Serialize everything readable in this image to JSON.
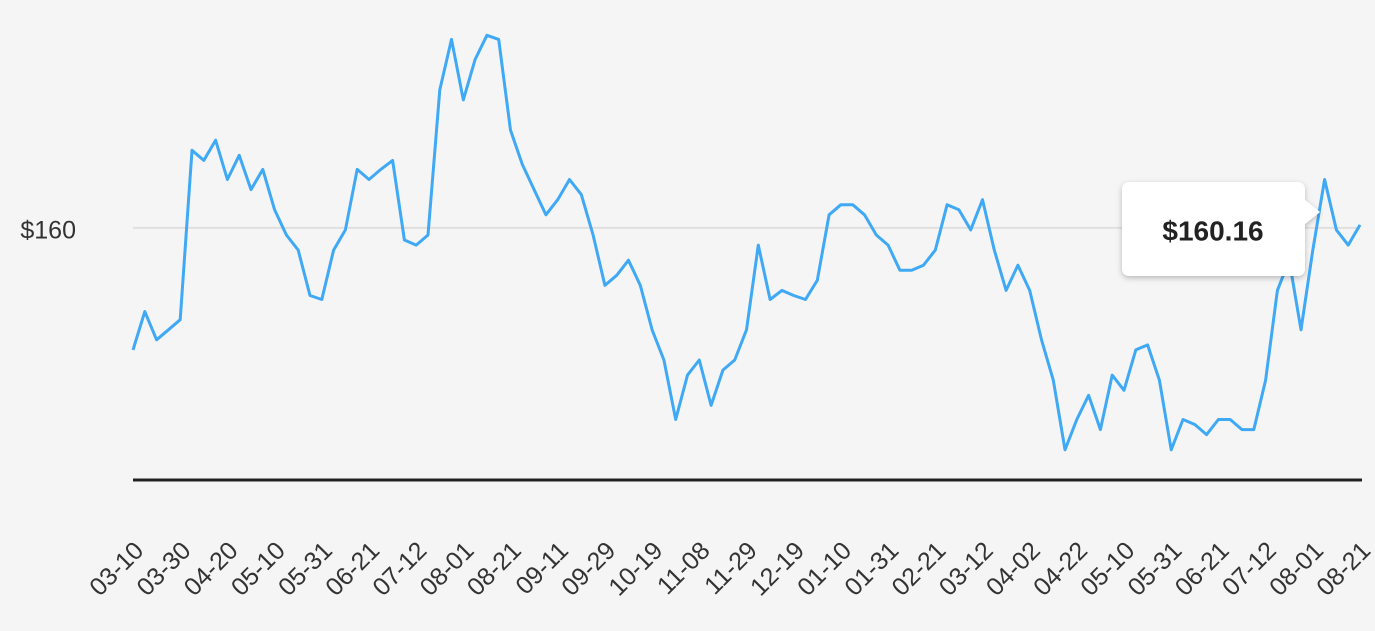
{
  "chart_data": {
    "type": "line",
    "categories": [
      "03-10",
      null,
      null,
      null,
      "03-30",
      null,
      null,
      null,
      "04-20",
      null,
      null,
      null,
      "05-10",
      null,
      null,
      null,
      "05-31",
      null,
      null,
      null,
      "06-21",
      null,
      null,
      null,
      "07-12",
      null,
      null,
      null,
      "08-01",
      null,
      null,
      null,
      "08-21",
      null,
      null,
      null,
      "09-11",
      null,
      null,
      null,
      "09-29",
      null,
      null,
      null,
      "10-19",
      null,
      null,
      null,
      "11-08",
      null,
      null,
      null,
      "11-29",
      null,
      null,
      null,
      "12-19",
      null,
      null,
      null,
      "01-10",
      null,
      null,
      null,
      "01-31",
      null,
      null,
      null,
      "02-21",
      null,
      null,
      null,
      "03-12",
      null,
      null,
      null,
      "04-02",
      null,
      null,
      null,
      "04-22",
      null,
      null,
      null,
      "05-10",
      null,
      null,
      null,
      "05-31",
      null,
      null,
      null,
      "06-21",
      null,
      null,
      null,
      "07-12",
      null,
      null,
      null,
      "08-01",
      null,
      null,
      null,
      "08-21"
    ],
    "series": [
      {
        "color": "#3fa9f5",
        "values": [
          147.9,
          151.7,
          148.9,
          149.9,
          150.9,
          167.7,
          166.7,
          168.7,
          164.8,
          167.2,
          163.8,
          165.8,
          161.8,
          159.3,
          157.8,
          153.3,
          152.9,
          157.8,
          159.8,
          165.8,
          164.8,
          165.8,
          166.7,
          158.8,
          158.3,
          159.3,
          173.7,
          178.7,
          172.7,
          176.7,
          179.1,
          178.7,
          169.7,
          166.3,
          163.8,
          161.3,
          162.8,
          164.8,
          163.3,
          159.3,
          154.3,
          155.3,
          156.8,
          154.3,
          149.9,
          146.9,
          141.0,
          145.4,
          146.9,
          142.4,
          145.9,
          146.9,
          149.9,
          158.3,
          152.9,
          153.8,
          153.3,
          152.9,
          154.8,
          161.3,
          162.3,
          162.3,
          161.3,
          159.3,
          158.3,
          155.8,
          155.8,
          156.3,
          157.8,
          162.3,
          161.8,
          159.8,
          162.8,
          157.8,
          153.8,
          156.3,
          153.8,
          148.9,
          144.9,
          138.0,
          141.0,
          143.4,
          140.0,
          145.4,
          143.9,
          147.9,
          148.4,
          144.9,
          138.0,
          141.0,
          140.5,
          139.5,
          141.0,
          141.0,
          140.0,
          140.0,
          144.9,
          153.8,
          156.8,
          149.9,
          157.8,
          164.8,
          159.8,
          158.3,
          160.3
        ]
      }
    ],
    "ylim": [
      135,
      183
    ],
    "yticks": [
      {
        "value": 160,
        "label": "$160"
      }
    ],
    "grid": true,
    "tooltip": "$160.16"
  }
}
